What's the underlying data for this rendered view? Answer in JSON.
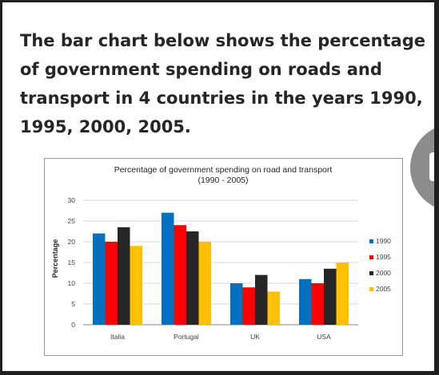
{
  "heading": "The bar chart below shows the percentage of government spending on roads and transport in 4 countries in the years 1990, 1995, 2000, 2005.",
  "chart_data": {
    "type": "bar",
    "title": "Percentage of government spending on road and transport",
    "subtitle": "(1990 - 2005)",
    "xlabel": "",
    "ylabel": "Percentage",
    "ylim": [
      0,
      30
    ],
    "yticks": [
      0,
      5,
      10,
      15,
      20,
      25,
      30
    ],
    "grid": true,
    "legend_position": "right",
    "categories": [
      "Italia",
      "Portugal",
      "UK",
      "USA"
    ],
    "series": [
      {
        "name": "1990",
        "color": "#0070c0",
        "values": [
          22,
          27,
          10,
          11
        ]
      },
      {
        "name": "1995",
        "color": "#ff0000",
        "values": [
          20,
          24,
          9,
          10
        ]
      },
      {
        "name": "2000",
        "color": "#262626",
        "values": [
          23.5,
          22.5,
          12,
          13.5
        ]
      },
      {
        "name": "2005",
        "color": "#ffc000",
        "values": [
          19,
          20,
          8,
          15
        ]
      }
    ]
  }
}
